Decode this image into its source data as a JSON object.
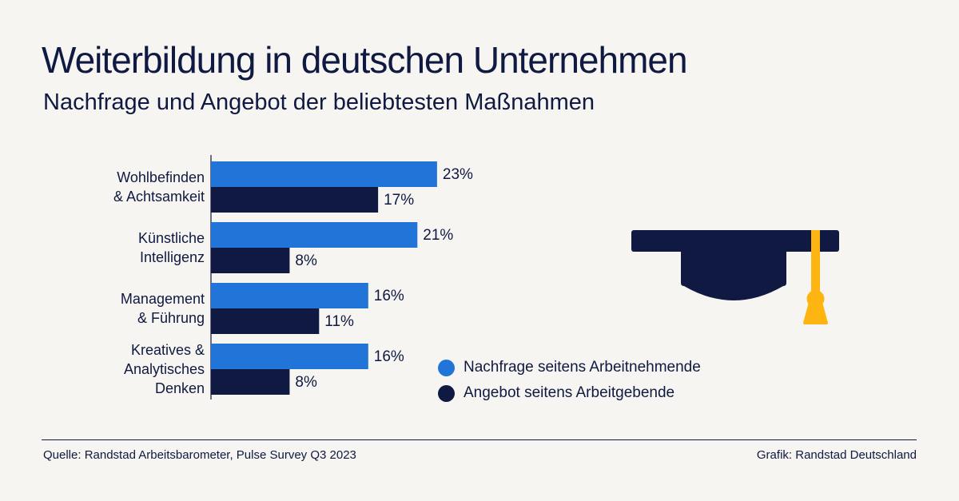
{
  "title": "Weiterbildung in deutschen Unternehmen",
  "subtitle": "Nachfrage und Angebot der beliebtesten Maßnahmen",
  "chart_data": {
    "type": "bar",
    "orientation": "horizontal",
    "categories": [
      [
        "Wohlbefinden",
        "& Achtsamkeit"
      ],
      [
        "Künstliche",
        "Intelligenz"
      ],
      [
        "Management",
        "& Führung"
      ],
      [
        "Kreatives &",
        "Analytisches",
        "Denken"
      ]
    ],
    "series": [
      {
        "name": "Nachfrage seitens Arbeitnehmende",
        "color": "#2175d9",
        "values": [
          23,
          21,
          16,
          16
        ]
      },
      {
        "name": "Angebot seitens Arbeitgebende",
        "color": "#0f1941",
        "values": [
          17,
          8,
          11,
          8
        ]
      }
    ],
    "value_suffix": "%",
    "xlim": [
      0,
      25
    ],
    "grid": false,
    "legend": "bottom-right"
  },
  "icon": "graduation-cap-icon",
  "colors": {
    "background": "#f6f5f1",
    "navy": "#0f1941",
    "blue": "#2175d9",
    "gold": "#ffb511"
  },
  "footer": {
    "source": "Quelle: Randstad Arbeitsbarometer, Pulse Survey Q3 2023",
    "credit": "Grafik: Randstad Deutschland"
  }
}
